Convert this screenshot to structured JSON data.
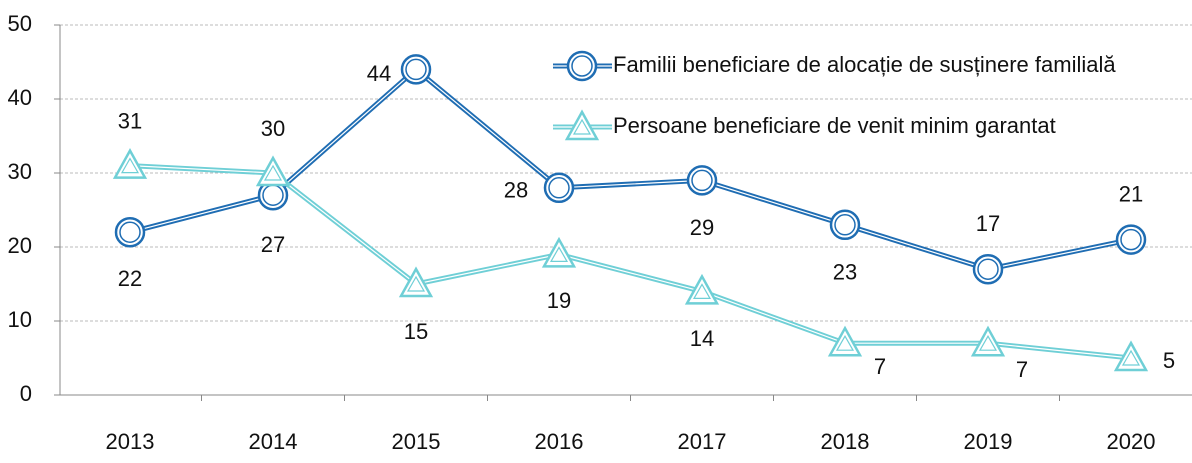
{
  "chart_data": {
    "type": "line",
    "categories": [
      "2013",
      "2014",
      "2015",
      "2016",
      "2017",
      "2018",
      "2019",
      "2020"
    ],
    "series": [
      {
        "name": "Familii beneficiare de alocație de susținere familială",
        "color": "#1f6db3",
        "marker": "circle",
        "values": [
          22,
          27,
          44,
          28,
          29,
          23,
          17,
          21
        ]
      },
      {
        "name": "Persoane beneficiare de venit minim garantat",
        "color": "#6fcfd6",
        "marker": "triangle",
        "values": [
          31,
          30,
          15,
          19,
          14,
          7,
          7,
          5
        ]
      }
    ],
    "ylim": [
      0,
      50
    ],
    "yticks": [
      0,
      10,
      20,
      30,
      40,
      50
    ],
    "grid": true,
    "legend": "upper right"
  }
}
